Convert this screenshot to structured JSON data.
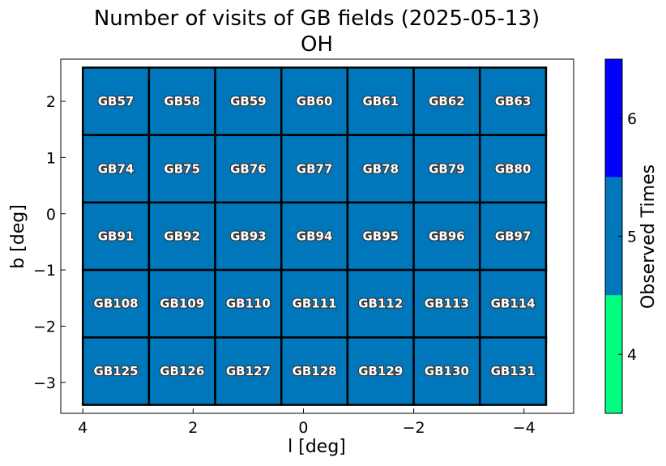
{
  "chart_data": {
    "type": "heatmap",
    "title": "Number of visits of GB fields (2025-05-13)",
    "subtitle": "OH",
    "xlabel": "l [deg]",
    "ylabel": "b [deg]",
    "colorbar_label": "Observed Times",
    "xlim": [
      4.4,
      -4.9
    ],
    "ylim": [
      -3.55,
      2.75
    ],
    "x_ticks": [
      4,
      2,
      0,
      -2,
      -4
    ],
    "x_tick_labels": [
      "4",
      "2",
      "0",
      "−2",
      "−4"
    ],
    "y_ticks": [
      2,
      1,
      0,
      -1,
      -2,
      -3
    ],
    "y_tick_labels": [
      "2",
      "1",
      "0",
      "−1",
      "−2",
      "−3"
    ],
    "l_edges": [
      4.0,
      2.8,
      1.6,
      0.4,
      -0.8,
      -2.0,
      -3.2,
      -4.4
    ],
    "b_edges": [
      2.6,
      1.4,
      0.2,
      -1.0,
      -2.2,
      -3.4
    ],
    "fields": [
      [
        "GB57",
        "GB58",
        "GB59",
        "GB60",
        "GB61",
        "GB62",
        "GB63"
      ],
      [
        "GB74",
        "GB75",
        "GB76",
        "GB77",
        "GB78",
        "GB79",
        "GB80"
      ],
      [
        "GB91",
        "GB92",
        "GB93",
        "GB94",
        "GB95",
        "GB96",
        "GB97"
      ],
      [
        "GB108",
        "GB109",
        "GB110",
        "GB111",
        "GB112",
        "GB113",
        "GB114"
      ],
      [
        "GB125",
        "GB126",
        "GB127",
        "GB128",
        "GB129",
        "GB130",
        "GB131"
      ]
    ],
    "visits": [
      [
        5,
        5,
        5,
        5,
        5,
        5,
        5
      ],
      [
        5,
        5,
        5,
        5,
        5,
        5,
        5
      ],
      [
        5,
        5,
        5,
        5,
        5,
        5,
        5
      ],
      [
        5,
        5,
        5,
        5,
        5,
        5,
        5
      ],
      [
        5,
        5,
        5,
        5,
        5,
        5,
        5
      ]
    ],
    "colorbar": {
      "levels": [
        3.5,
        4.5,
        5.5,
        6.5
      ],
      "colors": [
        "#00ff80",
        "#0077bb",
        "#0000ff"
      ],
      "ticks": [
        4,
        5,
        6
      ],
      "tick_labels": [
        "4",
        "5",
        "6"
      ]
    },
    "grid": false
  }
}
